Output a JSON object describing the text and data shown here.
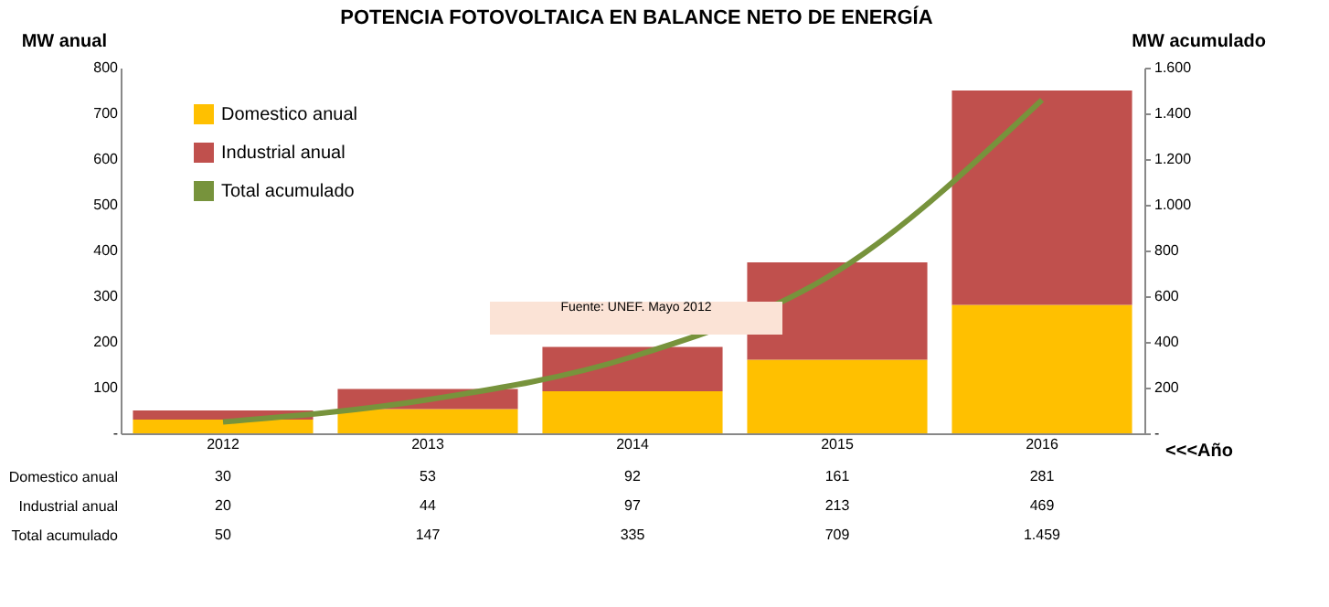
{
  "chart_data": {
    "type": "bar",
    "title": "POTENCIA FOTOVOLTAICA EN BALANCE NETO DE ENERGÍA",
    "ylabel": "MW anual",
    "y2label": "MW acumulado",
    "xlabel": "<<<Año",
    "categories": [
      "2012",
      "2013",
      "2014",
      "2015",
      "2016"
    ],
    "stacked": true,
    "series": [
      {
        "name": "Domestico anual",
        "color": "#ffc000",
        "values": [
          30,
          53,
          92,
          161,
          281
        ],
        "value_labels": [
          "30",
          "53",
          "92",
          "161",
          "281"
        ]
      },
      {
        "name": "Industrial anual",
        "color": "#c0504d",
        "values": [
          20,
          44,
          97,
          213,
          469
        ],
        "value_labels": [
          "20",
          "44",
          "97",
          "213",
          "469"
        ]
      },
      {
        "name": "Total acumulado",
        "type": "line",
        "axis": "y2",
        "color": "#77933c",
        "values": [
          50,
          147,
          335,
          709,
          1459
        ],
        "value_labels": [
          "50",
          "147",
          "335",
          "709",
          "1.459"
        ]
      }
    ],
    "ylim": [
      0,
      800
    ],
    "yticks": [
      {
        "value": 0,
        "label": "-"
      },
      100,
      200,
      300,
      400,
      500,
      600,
      700,
      800
    ],
    "y2lim": [
      0,
      1600
    ],
    "y2ticks": [
      {
        "value": 0,
        "label": "-"
      },
      200,
      400,
      600,
      800,
      {
        "value": 1000,
        "label": "1.000"
      },
      {
        "value": 1200,
        "label": "1.200"
      },
      {
        "value": 1400,
        "label": "1.400"
      },
      {
        "value": 1600,
        "label": "1.600"
      }
    ],
    "legend": "top left",
    "grid": false,
    "annotations": [
      "Fuente: UNEF. Mayo 2012"
    ]
  }
}
